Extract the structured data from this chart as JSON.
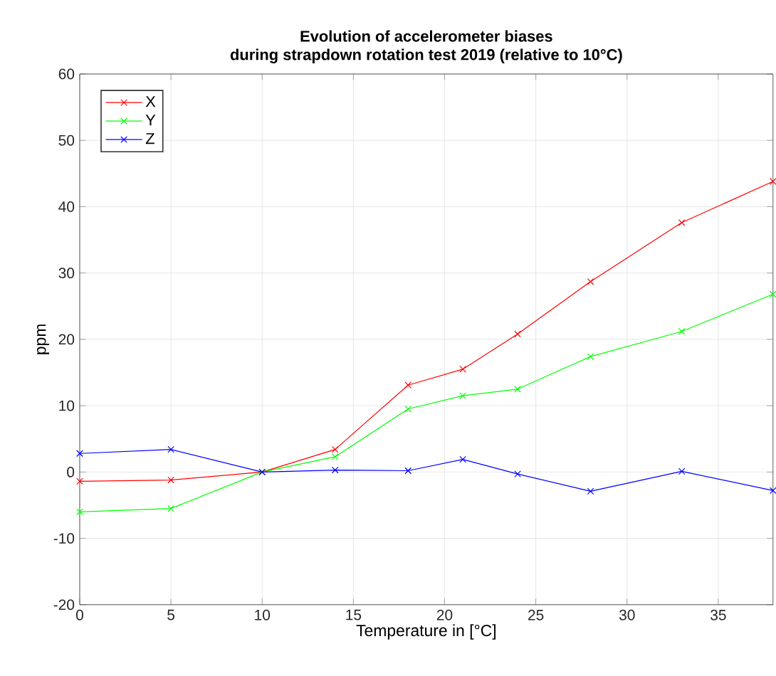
{
  "chart_data": {
    "type": "line",
    "title": "Evolution of accelerometer biases",
    "subtitle": "during strapdown rotation test 2019 (relative to 10°C)",
    "xlabel": "Temperature in [°C]",
    "ylabel": "ppm",
    "x": [
      0,
      5,
      10,
      14,
      18,
      21,
      24,
      28,
      33,
      38
    ],
    "series": [
      {
        "name": "X",
        "color": "#ff0000",
        "values": [
          -1.4,
          -1.2,
          0,
          3.4,
          13.1,
          15.5,
          20.8,
          28.7,
          37.6,
          43.8
        ]
      },
      {
        "name": "Y",
        "color": "#00ff00",
        "values": [
          -6,
          -5.5,
          0,
          2.3,
          9.5,
          11.5,
          12.5,
          17.4,
          21.2,
          26.8
        ]
      },
      {
        "name": "Z",
        "color": "#0000ff",
        "values": [
          2.8,
          3.4,
          0,
          0.3,
          0.2,
          1.9,
          -0.3,
          -2.9,
          0.1,
          -2.8
        ]
      }
    ],
    "xlim": [
      0,
      38
    ],
    "ylim": [
      -20,
      60
    ],
    "xticks": [
      0,
      5,
      10,
      15,
      20,
      25,
      30,
      35
    ],
    "yticks": [
      -20,
      -10,
      0,
      10,
      20,
      30,
      40,
      50,
      60
    ],
    "grid": true,
    "legend": "top left",
    "marker": "cross",
    "line_style": "solid"
  }
}
